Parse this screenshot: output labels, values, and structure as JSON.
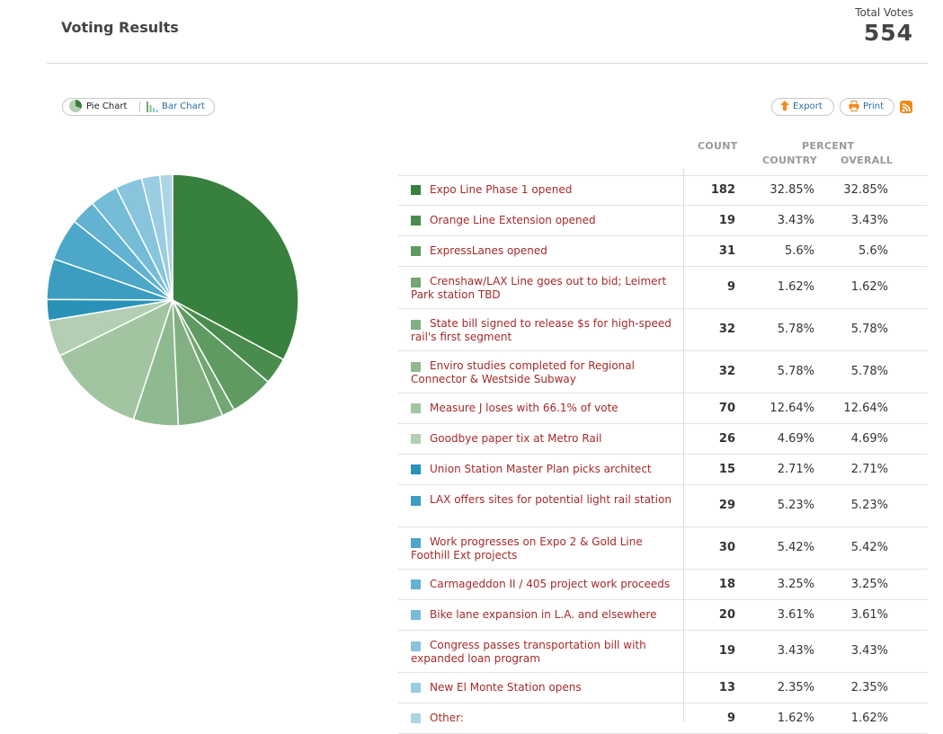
{
  "header": {
    "title": "Voting Results",
    "total_label": "Total Votes",
    "total_value": "554"
  },
  "toolbar": {
    "pie_label": "Pie Chart",
    "bar_label": "Bar Chart",
    "export_label": "Export",
    "print_label": "Print"
  },
  "columns": {
    "count": "COUNT",
    "percent": "PERCENT",
    "country": "COUNTRY",
    "overall": "OVERALL"
  },
  "chart_data": {
    "type": "pie",
    "slices": [
      {
        "label": "Expo Line Phase 1 opened",
        "value": 182,
        "country": "32.85%",
        "overall": "32.85%",
        "color": "#38803d"
      },
      {
        "label": "Orange Line Extension opened",
        "value": 19,
        "country": "3.43%",
        "overall": "3.43%",
        "color": "#4a8c4e"
      },
      {
        "label": "ExpressLanes opened",
        "value": 31,
        "country": "5.6%",
        "overall": "5.6%",
        "color": "#5f9b61"
      },
      {
        "label": "Crenshaw/LAX Line goes out to bid; Leimert Park station TBD",
        "value": 9,
        "country": "1.62%",
        "overall": "1.62%",
        "color": "#72a673"
      },
      {
        "label": "State bill signed to release $s for high-speed rail's first segment",
        "value": 32,
        "country": "5.78%",
        "overall": "5.78%",
        "color": "#82b083"
      },
      {
        "label": "Enviro studies completed for Regional Connector & Westside Subway",
        "value": 32,
        "country": "5.78%",
        "overall": "5.78%",
        "color": "#8fb990"
      },
      {
        "label": "Measure J loses with 66.1% of vote",
        "value": 70,
        "country": "12.64%",
        "overall": "12.64%",
        "color": "#a2c4a1"
      },
      {
        "label": "Goodbye paper tix at Metro Rail",
        "value": 26,
        "country": "4.69%",
        "overall": "4.69%",
        "color": "#b3ceb3"
      },
      {
        "label": "Union Station Master Plan picks architect",
        "value": 15,
        "country": "2.71%",
        "overall": "2.71%",
        "color": "#2a92b8"
      },
      {
        "label": "LAX offers sites for potential light rail station",
        "value": 29,
        "country": "5.23%",
        "overall": "5.23%",
        "color": "#3c9dc1"
      },
      {
        "label": "Work progresses on Expo 2 & Gold Line Foothill Ext projects",
        "value": 30,
        "country": "5.42%",
        "overall": "5.42%",
        "color": "#4da7c9"
      },
      {
        "label": "Carmageddon II / 405 project work proceeds",
        "value": 18,
        "country": "3.25%",
        "overall": "3.25%",
        "color": "#62b2d1"
      },
      {
        "label": "Bike lane expansion in L.A. and elsewhere",
        "value": 20,
        "country": "3.61%",
        "overall": "3.61%",
        "color": "#75bcd6"
      },
      {
        "label": "Congress passes transportation bill with expanded loan program",
        "value": 19,
        "country": "3.43%",
        "overall": "3.43%",
        "color": "#88c5dc"
      },
      {
        "label": "New El Monte Station opens",
        "value": 13,
        "country": "2.35%",
        "overall": "2.35%",
        "color": "#9acde1"
      },
      {
        "label": "Other:",
        "value": 9,
        "country": "1.62%",
        "overall": "1.62%",
        "color": "#abd5e5"
      }
    ]
  }
}
